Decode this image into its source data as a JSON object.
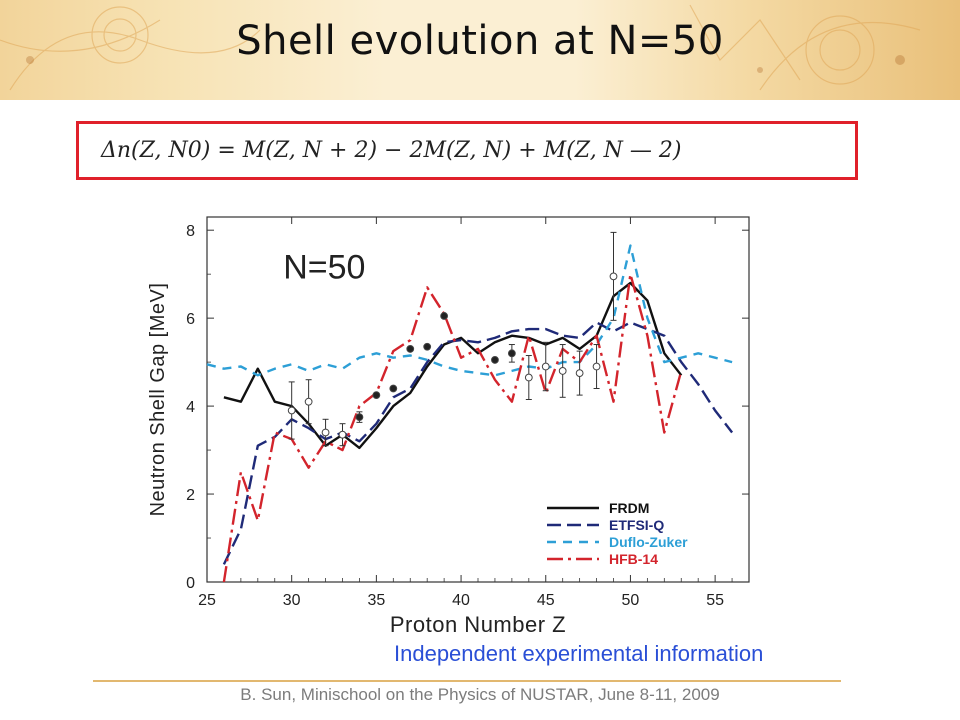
{
  "slide": {
    "title": "Shell evolution at N=50",
    "formula": "Δn(Z, N0)   =   M(Z, N + 2) − 2M(Z, N) + M(Z, N — 2)",
    "note": "Independent experimental information",
    "footer": "B. Sun, Minischool on the Physics of NUSTAR, June 8-11, 2009"
  },
  "chart_data": {
    "type": "line",
    "annotation": "N=50",
    "xlabel": "Proton Number Z",
    "ylabel": "Neutron Shell Gap [MeV]",
    "xlim": [
      25,
      57
    ],
    "ylim": [
      0,
      8.3
    ],
    "xticks": [
      25,
      30,
      35,
      40,
      45,
      50,
      55
    ],
    "yticks": [
      0,
      2,
      4,
      6,
      8
    ],
    "legend_position": "bottom-right",
    "grid": false,
    "series": [
      {
        "name": "FRDM",
        "color": "#111111",
        "dash": "solid",
        "x": [
          26,
          27,
          28,
          29,
          30,
          31,
          32,
          33,
          34,
          35,
          36,
          37,
          38,
          39,
          40,
          41,
          42,
          43,
          44,
          45,
          46,
          47,
          48,
          49,
          50,
          51,
          52,
          53
        ],
        "y": [
          4.2,
          4.1,
          4.85,
          4.1,
          4.0,
          3.6,
          3.1,
          3.35,
          3.05,
          3.5,
          4.0,
          4.3,
          4.9,
          5.4,
          5.55,
          5.2,
          5.45,
          5.6,
          5.55,
          5.4,
          5.55,
          5.3,
          5.6,
          6.5,
          6.8,
          6.4,
          5.2,
          4.7
        ]
      },
      {
        "name": "ETFSI-Q",
        "color": "#1f2a78",
        "dash": "long",
        "x": [
          26,
          27,
          28,
          29,
          30,
          31,
          32,
          33,
          34,
          35,
          36,
          37,
          38,
          39,
          40,
          41,
          42,
          43,
          44,
          45,
          46,
          47,
          48,
          49,
          50,
          51,
          52,
          53,
          54,
          55,
          56
        ],
        "y": [
          0.4,
          1.2,
          3.1,
          3.3,
          3.7,
          3.5,
          3.25,
          3.4,
          3.2,
          3.6,
          4.2,
          4.4,
          5.0,
          5.45,
          5.5,
          5.45,
          5.55,
          5.7,
          5.75,
          5.75,
          5.6,
          5.55,
          5.9,
          5.7,
          5.9,
          5.75,
          5.6,
          5.0,
          4.5,
          3.9,
          3.4
        ]
      },
      {
        "name": "Duflo-Zuker",
        "color": "#2d9fd6",
        "dash": "short",
        "x": [
          25,
          26,
          27,
          28,
          29,
          30,
          31,
          32,
          33,
          34,
          35,
          36,
          37,
          38,
          39,
          40,
          41,
          42,
          43,
          44,
          45,
          46,
          47,
          48,
          49,
          50,
          51,
          52,
          53,
          54,
          55,
          56
        ],
        "y": [
          4.95,
          4.85,
          4.9,
          4.7,
          4.85,
          4.95,
          4.8,
          4.95,
          4.85,
          5.1,
          5.2,
          5.1,
          5.15,
          5.05,
          4.9,
          4.8,
          4.75,
          4.7,
          4.8,
          4.9,
          4.85,
          5.0,
          5.0,
          5.4,
          6.0,
          7.65,
          6.0,
          5.0,
          5.1,
          5.2,
          5.1,
          5.0
        ]
      },
      {
        "name": "HFB-14",
        "color": "#d3242c",
        "dash": "dashdot",
        "x": [
          26,
          27,
          28,
          29,
          30,
          31,
          32,
          33,
          34,
          35,
          36,
          37,
          38,
          39,
          40,
          41,
          42,
          43,
          44,
          45,
          46,
          47,
          48,
          49,
          50,
          51,
          52,
          53
        ],
        "y": [
          0.0,
          2.5,
          1.4,
          3.4,
          3.25,
          2.6,
          3.2,
          3.0,
          4.0,
          4.3,
          5.25,
          5.5,
          6.7,
          6.1,
          5.1,
          5.3,
          4.6,
          4.1,
          5.6,
          4.3,
          5.3,
          5.0,
          5.6,
          4.1,
          7.0,
          5.6,
          3.4,
          4.8
        ]
      }
    ],
    "points": [
      {
        "x": 30,
        "y": 3.9,
        "err": 0.65,
        "filled": false
      },
      {
        "x": 31,
        "y": 4.1,
        "err": 0.5,
        "filled": false
      },
      {
        "x": 32,
        "y": 3.4,
        "err": 0.3,
        "filled": false
      },
      {
        "x": 33,
        "y": 3.35,
        "err": 0.25,
        "filled": false
      },
      {
        "x": 34,
        "y": 3.75,
        "err": 0.12,
        "filled": true
      },
      {
        "x": 35,
        "y": 4.25,
        "err": 0.0,
        "filled": true
      },
      {
        "x": 36,
        "y": 4.4,
        "err": 0.0,
        "filled": true
      },
      {
        "x": 37,
        "y": 5.3,
        "err": 0.0,
        "filled": true
      },
      {
        "x": 38,
        "y": 5.35,
        "err": 0.0,
        "filled": true
      },
      {
        "x": 39,
        "y": 6.05,
        "err": 0.0,
        "filled": true
      },
      {
        "x": 42,
        "y": 5.05,
        "err": 0.0,
        "filled": true
      },
      {
        "x": 43,
        "y": 5.2,
        "err": 0.2,
        "filled": true
      },
      {
        "x": 44,
        "y": 4.65,
        "err": 0.5,
        "filled": false
      },
      {
        "x": 45,
        "y": 4.9,
        "err": 0.55,
        "filled": false
      },
      {
        "x": 46,
        "y": 4.8,
        "err": 0.6,
        "filled": false
      },
      {
        "x": 47,
        "y": 4.75,
        "err": 0.5,
        "filled": false
      },
      {
        "x": 48,
        "y": 4.9,
        "err": 0.5,
        "filled": false
      },
      {
        "x": 49,
        "y": 6.95,
        "err": 1.0,
        "filled": false
      }
    ]
  }
}
